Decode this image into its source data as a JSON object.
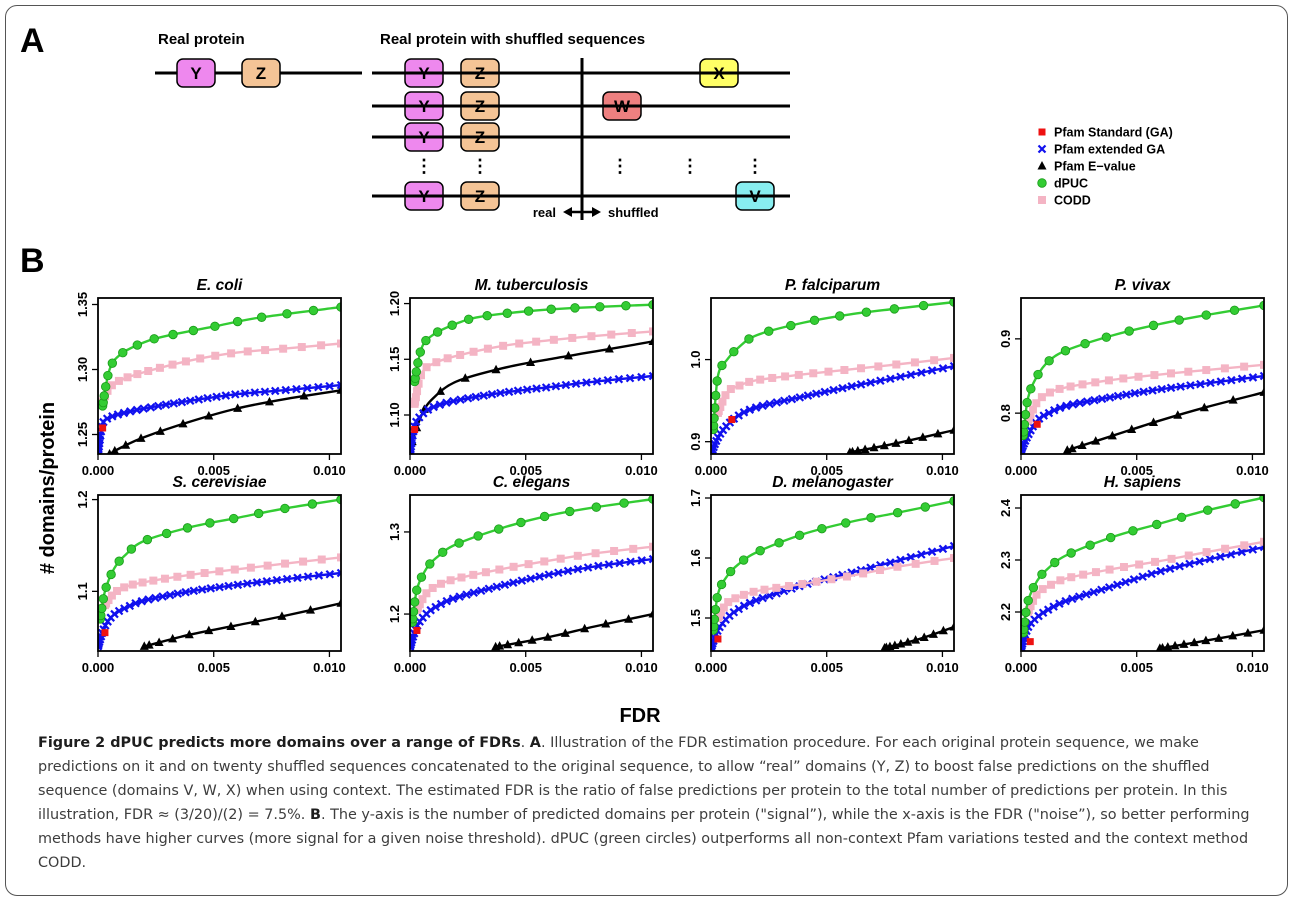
{
  "panel_a": {
    "label": "A",
    "real_title": "Real protein",
    "shuffled_title": "Real protein with shuffled sequences",
    "real_word": "real",
    "shuffled_word": "shuffled",
    "domains": {
      "Y": "Y",
      "Z": "Z",
      "X": "X",
      "W": "W",
      "V": "V"
    },
    "colors": {
      "Y": "#ee88ee",
      "Z": "#f4c496",
      "X": "#ffff66",
      "W": "#ee8080",
      "V": "#88eef0"
    }
  },
  "panel_b": {
    "label": "B",
    "ylabel": "# domains/protein",
    "xlabel": "FDR"
  },
  "legend": [
    {
      "label": "Pfam Standard (GA)",
      "marker": "square",
      "color": "#ee1111"
    },
    {
      "label": "Pfam extended GA",
      "marker": "cross",
      "color": "#1111ee"
    },
    {
      "label": "Pfam E−value",
      "marker": "triangle",
      "color": "#000000"
    },
    {
      "label": "dPUC",
      "marker": "circle",
      "color": "#33cc33"
    },
    {
      "label": "CODD",
      "marker": "square-open",
      "color": "#f4b4c4"
    }
  ],
  "chart_data": [
    {
      "type": "line",
      "title": "E. coli",
      "xlim": [
        0,
        0.0105
      ],
      "ylim": [
        1.235,
        1.355
      ],
      "xticks": [
        "0.000",
        "0.005",
        "0.010"
      ],
      "yticks": [
        "1.25",
        "1.30",
        "1.35"
      ],
      "series": [
        {
          "name": "dPUC",
          "x": [
            0.0002,
            0.0005,
            0.001,
            0.002,
            0.003,
            0.005,
            0.007,
            0.0105
          ],
          "y": [
            1.272,
            1.3,
            1.312,
            1.321,
            1.326,
            1.333,
            1.34,
            1.348
          ]
        },
        {
          "name": "CODD",
          "x": [
            0.0002,
            0.0005,
            0.001,
            0.002,
            0.004,
            0.006,
            0.008,
            0.0105
          ],
          "y": [
            1.275,
            1.286,
            1.292,
            1.298,
            1.307,
            1.313,
            1.316,
            1.32
          ]
        },
        {
          "name": "Pfam extended GA",
          "x": [
            0.0,
            0.0002,
            0.0005,
            0.001,
            0.002,
            0.004,
            0.006,
            0.008,
            0.0105
          ],
          "y": [
            1.235,
            1.258,
            1.263,
            1.266,
            1.27,
            1.276,
            1.281,
            1.284,
            1.288
          ]
        },
        {
          "name": "Pfam E-value",
          "x": [
            0.0005,
            0.001,
            0.002,
            0.004,
            0.006,
            0.008,
            0.0105
          ],
          "y": [
            1.235,
            1.24,
            1.248,
            1.26,
            1.27,
            1.277,
            1.284
          ]
        },
        {
          "name": "Pfam Standard (GA)",
          "x": [
            0.0002
          ],
          "y": [
            1.255
          ]
        }
      ]
    },
    {
      "type": "line",
      "title": "M. tuberculosis",
      "xlim": [
        0,
        0.0105
      ],
      "ylim": [
        1.065,
        1.205
      ],
      "xticks": [
        "0.000",
        "0.005",
        "0.010"
      ],
      "yticks": [
        "1.10",
        "1.15",
        "1.20"
      ],
      "series": [
        {
          "name": "dPUC",
          "x": [
            0.0002,
            0.0005,
            0.001,
            0.002,
            0.003,
            0.005,
            0.007,
            0.0105
          ],
          "y": [
            1.13,
            1.16,
            1.172,
            1.182,
            1.188,
            1.193,
            1.196,
            1.199
          ]
        },
        {
          "name": "CODD",
          "x": [
            0.0002,
            0.0005,
            0.001,
            0.002,
            0.004,
            0.006,
            0.008,
            0.0105
          ],
          "y": [
            1.11,
            1.137,
            1.146,
            1.153,
            1.162,
            1.167,
            1.171,
            1.175
          ]
        },
        {
          "name": "Pfam extended GA",
          "x": [
            0.0,
            0.0002,
            0.0005,
            0.001,
            0.002,
            0.004,
            0.006,
            0.008,
            0.0105
          ],
          "y": [
            1.065,
            1.09,
            1.1,
            1.107,
            1.113,
            1.12,
            1.125,
            1.13,
            1.135
          ]
        },
        {
          "name": "Pfam E-value",
          "x": [
            0.0,
            0.0005,
            0.001,
            0.002,
            0.004,
            0.006,
            0.008,
            0.0105
          ],
          "y": [
            1.07,
            1.1,
            1.115,
            1.13,
            1.142,
            1.15,
            1.157,
            1.166
          ]
        },
        {
          "name": "Pfam Standard (GA)",
          "x": [
            0.0002
          ],
          "y": [
            1.087
          ]
        }
      ]
    },
    {
      "type": "line",
      "title": "P. falciparum",
      "xlim": [
        0,
        0.0105
      ],
      "ylim": [
        0.885,
        1.075
      ],
      "xticks": [
        "0.000",
        "0.005",
        "0.010"
      ],
      "yticks": [
        "0.9",
        "1.0"
      ],
      "series": [
        {
          "name": "dPUC",
          "x": [
            0.0001,
            0.0003,
            0.0007,
            0.0012,
            0.002,
            0.004,
            0.006,
            0.008,
            0.0105
          ],
          "y": [
            0.915,
            0.98,
            1.0,
            1.015,
            1.03,
            1.045,
            1.055,
            1.062,
            1.07
          ]
        },
        {
          "name": "CODD",
          "x": [
            0.0003,
            0.0007,
            0.0012,
            0.002,
            0.004,
            0.006,
            0.008,
            0.0105
          ],
          "y": [
            0.935,
            0.96,
            0.968,
            0.975,
            0.982,
            0.988,
            0.994,
            1.002
          ]
        },
        {
          "name": "Pfam extended GA",
          "x": [
            0.0,
            0.0003,
            0.0007,
            0.0012,
            0.002,
            0.004,
            0.006,
            0.008,
            0.0105
          ],
          "y": [
            0.885,
            0.905,
            0.92,
            0.932,
            0.942,
            0.955,
            0.967,
            0.978,
            0.992
          ]
        },
        {
          "name": "Pfam E-value",
          "x": [
            0.006,
            0.008,
            0.0105
          ],
          "y": [
            0.887,
            0.898,
            0.914
          ]
        },
        {
          "name": "Pfam Standard (GA)",
          "x": [
            0.0009
          ],
          "y": [
            0.927
          ]
        }
      ]
    },
    {
      "type": "line",
      "title": "P. vivax",
      "xlim": [
        0,
        0.0105
      ],
      "ylim": [
        0.745,
        0.955
      ],
      "xticks": [
        "0.000",
        "0.005",
        "0.010"
      ],
      "yticks": [
        "0.8",
        "0.9"
      ],
      "series": [
        {
          "name": "dPUC",
          "x": [
            0.0001,
            0.0003,
            0.0007,
            0.0012,
            0.002,
            0.004,
            0.006,
            0.008,
            0.0105
          ],
          "y": [
            0.77,
            0.82,
            0.85,
            0.87,
            0.885,
            0.905,
            0.92,
            0.932,
            0.945
          ]
        },
        {
          "name": "CODD",
          "x": [
            0.0003,
            0.0007,
            0.0012,
            0.002,
            0.004,
            0.006,
            0.008,
            0.0105
          ],
          "y": [
            0.79,
            0.815,
            0.827,
            0.835,
            0.845,
            0.852,
            0.858,
            0.865
          ]
        },
        {
          "name": "Pfam extended GA",
          "x": [
            0.0,
            0.0003,
            0.0007,
            0.0012,
            0.002,
            0.004,
            0.006,
            0.008,
            0.0105
          ],
          "y": [
            0.75,
            0.77,
            0.79,
            0.8,
            0.81,
            0.822,
            0.832,
            0.84,
            0.85
          ]
        },
        {
          "name": "Pfam E-value",
          "x": [
            0.002,
            0.004,
            0.006,
            0.008,
            0.0105
          ],
          "y": [
            0.75,
            0.77,
            0.79,
            0.808,
            0.828
          ]
        },
        {
          "name": "Pfam Standard (GA)",
          "x": [
            0.0007
          ],
          "y": [
            0.785
          ]
        }
      ]
    },
    {
      "type": "line",
      "title": "S. cerevisiae",
      "xlim": [
        0,
        0.0105
      ],
      "ylim": [
        1.035,
        1.205
      ],
      "xticks": [
        "0.000",
        "0.005",
        "0.010"
      ],
      "yticks": [
        "1.1",
        "1.2"
      ],
      "series": [
        {
          "name": "dPUC",
          "x": [
            0.0001,
            0.0003,
            0.0007,
            0.0012,
            0.002,
            0.004,
            0.006,
            0.008,
            0.0105
          ],
          "y": [
            1.07,
            1.1,
            1.125,
            1.14,
            1.155,
            1.17,
            1.18,
            1.19,
            1.2
          ]
        },
        {
          "name": "CODD",
          "x": [
            0.0003,
            0.0007,
            0.0012,
            0.002,
            0.004,
            0.006,
            0.008,
            0.0105
          ],
          "y": [
            1.085,
            1.098,
            1.105,
            1.11,
            1.118,
            1.124,
            1.13,
            1.137
          ]
        },
        {
          "name": "Pfam extended GA",
          "x": [
            0.0,
            0.0003,
            0.0007,
            0.0012,
            0.002,
            0.004,
            0.006,
            0.008,
            0.0105
          ],
          "y": [
            1.04,
            1.062,
            1.075,
            1.082,
            1.09,
            1.1,
            1.107,
            1.113,
            1.12
          ]
        },
        {
          "name": "Pfam E-value",
          "x": [
            0.002,
            0.004,
            0.006,
            0.008,
            0.0105
          ],
          "y": [
            1.04,
            1.053,
            1.063,
            1.073,
            1.087
          ]
        },
        {
          "name": "Pfam Standard (GA)",
          "x": [
            0.0003
          ],
          "y": [
            1.055
          ]
        }
      ]
    },
    {
      "type": "line",
      "title": "C. elegans",
      "xlim": [
        0,
        0.0105
      ],
      "ylim": [
        1.155,
        1.345
      ],
      "xticks": [
        "0.000",
        "0.005",
        "0.010"
      ],
      "yticks": [
        "1.2",
        "1.3"
      ],
      "series": [
        {
          "name": "dPUC",
          "x": [
            0.0001,
            0.0003,
            0.0007,
            0.0012,
            0.002,
            0.004,
            0.006,
            0.008,
            0.0105
          ],
          "y": [
            1.19,
            1.23,
            1.255,
            1.27,
            1.285,
            1.305,
            1.32,
            1.33,
            1.34
          ]
        },
        {
          "name": "CODD",
          "x": [
            0.0003,
            0.0007,
            0.0012,
            0.002,
            0.004,
            0.006,
            0.008,
            0.0105
          ],
          "y": [
            1.205,
            1.225,
            1.235,
            1.243,
            1.255,
            1.265,
            1.274,
            1.282
          ]
        },
        {
          "name": "Pfam extended GA",
          "x": [
            0.0,
            0.0003,
            0.0007,
            0.0012,
            0.002,
            0.004,
            0.006,
            0.008,
            0.0105
          ],
          "y": [
            1.16,
            1.185,
            1.2,
            1.21,
            1.22,
            1.235,
            1.248,
            1.258,
            1.267
          ]
        },
        {
          "name": "Pfam E-value",
          "x": [
            0.0037,
            0.006,
            0.008,
            0.0105
          ],
          "y": [
            1.16,
            1.172,
            1.185,
            1.2
          ]
        },
        {
          "name": "Pfam Standard (GA)",
          "x": [
            0.0003
          ],
          "y": [
            1.18
          ]
        }
      ]
    },
    {
      "type": "line",
      "title": "D. melanogaster",
      "xlim": [
        0,
        0.0105
      ],
      "ylim": [
        1.445,
        1.705
      ],
      "xticks": [
        "0.000",
        "0.005",
        "0.010"
      ],
      "yticks": [
        "1.5",
        "1.6",
        "1.7"
      ],
      "series": [
        {
          "name": "dPUC",
          "x": [
            0.0001,
            0.0003,
            0.0007,
            0.0012,
            0.002,
            0.004,
            0.006,
            0.008,
            0.0105
          ],
          "y": [
            1.48,
            1.54,
            1.57,
            1.59,
            1.61,
            1.64,
            1.66,
            1.675,
            1.695
          ]
        },
        {
          "name": "CODD",
          "x": [
            0.0003,
            0.0007,
            0.0012,
            0.002,
            0.004,
            0.006,
            0.008,
            0.0105
          ],
          "y": [
            1.5,
            1.525,
            1.535,
            1.545,
            1.557,
            1.57,
            1.585,
            1.6
          ]
        },
        {
          "name": "Pfam extended GA",
          "x": [
            0.0,
            0.0003,
            0.0007,
            0.0012,
            0.002,
            0.004,
            0.006,
            0.008,
            0.0105
          ],
          "y": [
            1.45,
            1.48,
            1.5,
            1.515,
            1.53,
            1.555,
            1.575,
            1.595,
            1.62
          ]
        },
        {
          "name": "Pfam E-value",
          "x": [
            0.0075,
            0.009,
            0.0105
          ],
          "y": [
            1.45,
            1.465,
            1.485
          ]
        },
        {
          "name": "Pfam Standard (GA)",
          "x": [
            0.0003
          ],
          "y": [
            1.465
          ]
        }
      ]
    },
    {
      "type": "line",
      "title": "H. sapiens",
      "xlim": [
        0,
        0.0105
      ],
      "ylim": [
        2.125,
        2.425
      ],
      "xticks": [
        "0.000",
        "0.005",
        "0.010"
      ],
      "yticks": [
        "2.2",
        "2.3",
        "2.4"
      ],
      "series": [
        {
          "name": "dPUC",
          "x": [
            0.0001,
            0.0003,
            0.0007,
            0.0012,
            0.002,
            0.004,
            0.006,
            0.008,
            0.0105
          ],
          "y": [
            2.16,
            2.22,
            2.26,
            2.285,
            2.31,
            2.345,
            2.37,
            2.395,
            2.42
          ]
        },
        {
          "name": "CODD",
          "x": [
            0.0003,
            0.0007,
            0.0012,
            0.002,
            0.004,
            0.006,
            0.008,
            0.0105
          ],
          "y": [
            2.2,
            2.235,
            2.25,
            2.265,
            2.283,
            2.298,
            2.315,
            2.335
          ]
        },
        {
          "name": "Pfam extended GA",
          "x": [
            0.0,
            0.0003,
            0.0007,
            0.0012,
            0.002,
            0.004,
            0.006,
            0.008,
            0.0105
          ],
          "y": [
            2.13,
            2.17,
            2.19,
            2.205,
            2.222,
            2.25,
            2.278,
            2.3,
            2.325
          ]
        },
        {
          "name": "Pfam E-value",
          "x": [
            0.006,
            0.008,
            0.0105
          ],
          "y": [
            2.13,
            2.145,
            2.165
          ]
        },
        {
          "name": "Pfam Standard (GA)",
          "x": [
            0.0004
          ],
          "y": [
            2.143
          ]
        }
      ]
    }
  ],
  "caption": {
    "title": "Figure 2 dPUC predicts more domains over a range of FDRs",
    "a_label": "A",
    "a_text": ". Illustration of the FDR estimation procedure. For each original protein sequence, we make predictions on it and on twenty shuffled sequences concatenated to the original sequence, to allow “real” domains (Y, Z) to boost false predictions on the shuffled sequence (domains V, W, X) when using context. The estimated FDR is the ratio of false predictions per protein to the total number of predictions per protein. In this illustration, FDR ≈ (3/20)/(2) = 7.5%. ",
    "b_label": "B",
    "b_text": ". The y-axis is the number of predicted domains per protein (\"signal”), while the x-axis is the FDR (\"noise”), so better performing methods have higher curves (more signal for a given noise threshold). dPUC (green circles) outperforms all non-context Pfam variations tested and the context method CODD."
  }
}
